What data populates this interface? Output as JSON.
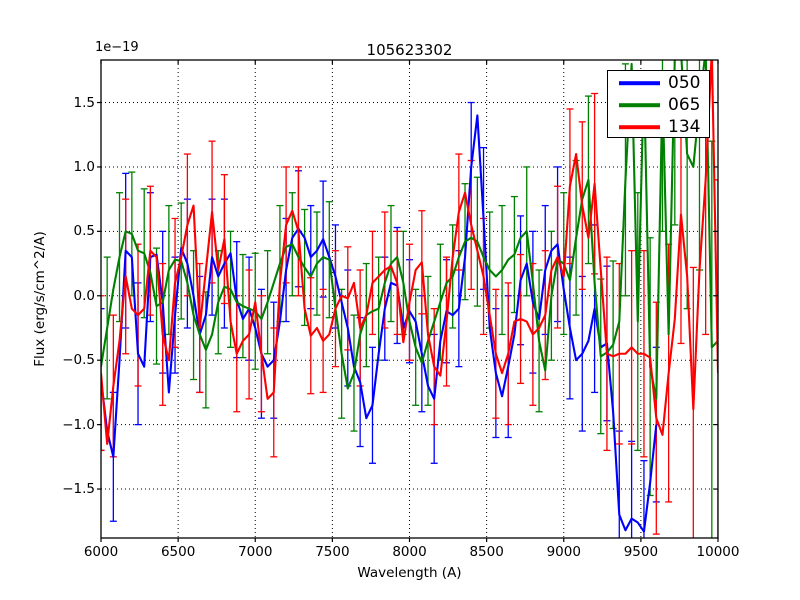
{
  "figure": {
    "title": "105623302",
    "offset_label": "1e−19",
    "xlabel": "Wavelength (A)",
    "ylabel": "Flux (erg/s/cm^2/A)"
  },
  "chart_data": {
    "type": "line",
    "title": "105623302",
    "xlabel": "Wavelength (A)",
    "ylabel": "Flux (erg/s/cm^2/A)",
    "y_offset_factor": "1e−19",
    "xlim": [
      6000,
      10000
    ],
    "ylim": [
      -1.88,
      1.83
    ],
    "x_ticks": [
      6000,
      6500,
      7000,
      7500,
      8000,
      8500,
      9000,
      9500,
      10000
    ],
    "x_tick_labels": [
      "6000",
      "6500",
      "7000",
      "7500",
      "8000",
      "8500",
      "9000",
      "9500",
      "10000"
    ],
    "y_ticks": [
      1.5,
      1.0,
      0.5,
      0.0,
      -0.5,
      -1.0,
      -1.5
    ],
    "y_tick_labels": [
      "1.5",
      "1.0",
      "0.5",
      "0.0",
      "−0.5",
      "−1.0",
      "−1.5"
    ],
    "grid": true,
    "grid_style": "dotted",
    "legend_position": "upper right",
    "x": [
      6000,
      6040,
      6080,
      6120,
      6160,
      6200,
      6240,
      6280,
      6320,
      6360,
      6400,
      6440,
      6480,
      6520,
      6560,
      6600,
      6640,
      6680,
      6720,
      6760,
      6800,
      6840,
      6880,
      6920,
      6960,
      7000,
      7040,
      7080,
      7120,
      7160,
      7200,
      7240,
      7280,
      7320,
      7360,
      7400,
      7440,
      7480,
      7520,
      7560,
      7600,
      7640,
      7680,
      7720,
      7760,
      7800,
      7840,
      7880,
      7920,
      7960,
      8000,
      8040,
      8080,
      8120,
      8160,
      8200,
      8240,
      8280,
      8320,
      8360,
      8400,
      8440,
      8480,
      8520,
      8560,
      8600,
      8640,
      8680,
      8720,
      8760,
      8800,
      8840,
      8880,
      8920,
      8960,
      9000,
      9040,
      9080,
      9120,
      9160,
      9200,
      9240,
      9280,
      9320,
      9360,
      9400,
      9440,
      9480,
      9520,
      9560,
      9600,
      9640,
      9680,
      9720,
      9760,
      9800,
      9840,
      9880,
      9920,
      9960,
      10000
    ],
    "series": [
      {
        "name": "050",
        "color": "#0000ff",
        "values": [
          -0.65,
          -1.05,
          -1.25,
          -0.5,
          0.35,
          0.3,
          -0.45,
          -0.55,
          0.3,
          0.32,
          -0.05,
          -0.75,
          -0.15,
          0.37,
          0.25,
          0.0,
          -0.3,
          -0.15,
          0.3,
          0.15,
          0.25,
          0.33,
          -0.03,
          -0.18,
          -0.1,
          -0.25,
          -0.45,
          -0.55,
          -0.5,
          -0.2,
          0.2,
          0.45,
          0.52,
          0.45,
          0.3,
          0.35,
          0.44,
          0.3,
          0.15,
          -0.05,
          -0.25,
          -0.55,
          -0.67,
          -0.95,
          -0.85,
          -0.45,
          -0.1,
          0.1,
          0.08,
          -0.25,
          -0.12,
          -0.2,
          -0.45,
          -0.7,
          -0.8,
          -0.35,
          -0.12,
          -0.15,
          -0.1,
          0.3,
          1.0,
          1.4,
          0.6,
          -0.25,
          -0.6,
          -0.78,
          -0.55,
          -0.3,
          0.12,
          0.25,
          -0.05,
          -0.18,
          0.2,
          0.35,
          0.4,
          0.05,
          -0.25,
          -0.5,
          -0.45,
          -0.35,
          -0.1,
          -0.4,
          -0.37,
          -0.9,
          -1.7,
          -1.82,
          -1.73,
          -1.76,
          -1.83,
          -1.45,
          -1.0,
          null,
          null,
          null,
          null,
          null,
          null,
          null,
          null,
          null,
          null
        ],
        "err": [
          0.55,
          null,
          0.5,
          null,
          0.6,
          null,
          0.55,
          null,
          0.5,
          null,
          0.55,
          null,
          0.45,
          null,
          0.5,
          null,
          0.45,
          null,
          0.45,
          null,
          0.5,
          null,
          0.45,
          null,
          0.4,
          null,
          0.5,
          null,
          0.45,
          null,
          0.4,
          null,
          0.45,
          null,
          0.4,
          null,
          0.45,
          null,
          0.4,
          null,
          0.45,
          null,
          0.5,
          null,
          0.45,
          null,
          0.4,
          null,
          0.45,
          null,
          0.4,
          null,
          0.45,
          null,
          0.5,
          null,
          0.4,
          null,
          0.45,
          null,
          0.5,
          null,
          0.55,
          null,
          0.5,
          null,
          0.55,
          null,
          0.5,
          null,
          0.55,
          null,
          0.5,
          null,
          0.6,
          null,
          0.55,
          null,
          0.6,
          null,
          0.65,
          null,
          0.6,
          null,
          0.65,
          null,
          0.6,
          null,
          0.55,
          null,
          0.6,
          null,
          null,
          null,
          null,
          null,
          null,
          null,
          null,
          null,
          null
        ]
      },
      {
        "name": "065",
        "color": "#008000",
        "values": [
          -0.55,
          -0.25,
          0.05,
          0.3,
          0.5,
          0.48,
          0.35,
          0.33,
          0.18,
          -0.08,
          -0.05,
          0.2,
          0.28,
          0.27,
          0.1,
          -0.15,
          -0.3,
          -0.42,
          -0.3,
          -0.05,
          0.07,
          0.05,
          -0.05,
          -0.08,
          -0.1,
          -0.12,
          -0.18,
          -0.05,
          0.1,
          0.25,
          0.38,
          0.4,
          0.3,
          0.22,
          0.15,
          0.25,
          0.3,
          0.28,
          -0.1,
          -0.45,
          -0.72,
          -0.6,
          -0.3,
          -0.15,
          -0.12,
          -0.1,
          0.1,
          0.25,
          0.3,
          0.1,
          -0.2,
          -0.4,
          -0.52,
          -0.35,
          -0.2,
          -0.05,
          0.1,
          0.15,
          0.3,
          0.42,
          0.45,
          0.42,
          0.3,
          0.2,
          0.15,
          0.2,
          0.28,
          0.32,
          0.45,
          0.5,
          0.1,
          -0.35,
          -0.58,
          0.0,
          0.28,
          0.25,
          0.12,
          0.45,
          0.75,
          0.9,
          0.1,
          -0.47,
          -0.44,
          -0.38,
          -0.2,
          0.9,
          1.8,
          -0.2,
          1.7,
          -0.55,
          -0.8,
          1.6,
          -0.3,
          1.85,
          1.9,
          1.1,
          1.0,
          1.5,
          1.9,
          -0.4,
          -0.35
        ],
        "err": [
          null,
          0.55,
          null,
          0.5,
          null,
          0.48,
          null,
          0.5,
          null,
          0.45,
          null,
          0.5,
          null,
          0.45,
          null,
          0.5,
          null,
          0.45,
          null,
          0.4,
          null,
          0.45,
          null,
          0.4,
          null,
          0.45,
          null,
          0.4,
          null,
          0.45,
          null,
          0.4,
          null,
          0.45,
          null,
          0.4,
          null,
          0.45,
          null,
          0.5,
          null,
          0.45,
          null,
          0.4,
          null,
          0.4,
          null,
          0.45,
          null,
          0.4,
          null,
          0.45,
          null,
          0.5,
          null,
          0.45,
          null,
          0.4,
          null,
          0.45,
          null,
          0.5,
          null,
          0.45,
          null,
          0.5,
          null,
          0.45,
          null,
          0.5,
          null,
          0.55,
          null,
          0.5,
          null,
          0.55,
          null,
          0.6,
          null,
          0.65,
          null,
          0.6,
          null,
          0.65,
          null,
          0.9,
          null,
          1.0,
          null,
          1.0,
          null,
          1.1,
          null,
          1.3,
          null,
          1.2,
          null,
          1.3,
          null,
          1.6,
          null
        ]
      },
      {
        "name": "134",
        "color": "#ff0000",
        "values": [
          -0.6,
          -1.15,
          -0.7,
          -0.35,
          0.15,
          -0.1,
          -0.15,
          -0.1,
          0.35,
          0.3,
          -0.3,
          -0.5,
          0.1,
          0.3,
          0.55,
          0.7,
          -0.25,
          0.2,
          0.65,
          0.2,
          0.44,
          -0.2,
          -0.45,
          -0.35,
          -0.3,
          -0.05,
          -0.45,
          -0.8,
          -0.75,
          0.1,
          0.55,
          0.66,
          0.5,
          -0.1,
          -0.31,
          -0.25,
          -0.35,
          -0.3,
          -0.1,
          0.0,
          -0.02,
          0.1,
          -0.25,
          -0.15,
          0.1,
          0.15,
          0.2,
          0.23,
          0.1,
          -0.36,
          -0.05,
          0.2,
          0.26,
          -0.3,
          -0.55,
          -0.62,
          -0.2,
          0.3,
          0.65,
          0.8,
          0.55,
          0.35,
          0.15,
          -0.15,
          -0.45,
          -0.6,
          -0.45,
          -0.2,
          -0.18,
          -0.2,
          -0.3,
          -0.25,
          -0.15,
          0.2,
          0.3,
          0.15,
          0.85,
          1.1,
          0.7,
          0.45,
          0.87,
          0.2,
          -0.45,
          -0.47,
          -0.45,
          -0.45,
          -0.4,
          -0.45,
          -0.45,
          -0.48,
          -0.95,
          -1.08,
          -0.6,
          -0.18,
          0.63,
          0.15,
          -0.88,
          0.2,
          0.9,
          1.9,
          -0.6
        ],
        "err": [
          0.6,
          null,
          0.55,
          null,
          0.6,
          null,
          0.55,
          null,
          0.5,
          null,
          0.55,
          null,
          0.5,
          null,
          0.55,
          null,
          0.5,
          null,
          0.55,
          null,
          0.5,
          null,
          0.45,
          null,
          0.5,
          null,
          0.45,
          null,
          0.5,
          null,
          0.45,
          null,
          0.5,
          null,
          0.45,
          null,
          0.4,
          null,
          0.45,
          null,
          0.4,
          null,
          0.45,
          null,
          0.4,
          null,
          0.45,
          null,
          0.4,
          null,
          0.45,
          null,
          0.4,
          null,
          0.45,
          null,
          0.5,
          null,
          0.45,
          null,
          0.5,
          null,
          0.45,
          null,
          0.5,
          null,
          0.55,
          null,
          0.5,
          null,
          0.55,
          null,
          0.5,
          null,
          0.55,
          null,
          0.6,
          null,
          0.65,
          null,
          0.7,
          null,
          0.75,
          null,
          0.7,
          null,
          0.75,
          null,
          0.8,
          null,
          0.9,
          null,
          1.0,
          null,
          1.0,
          null,
          1.1,
          null,
          1.2,
          null,
          1.5
        ]
      }
    ]
  }
}
